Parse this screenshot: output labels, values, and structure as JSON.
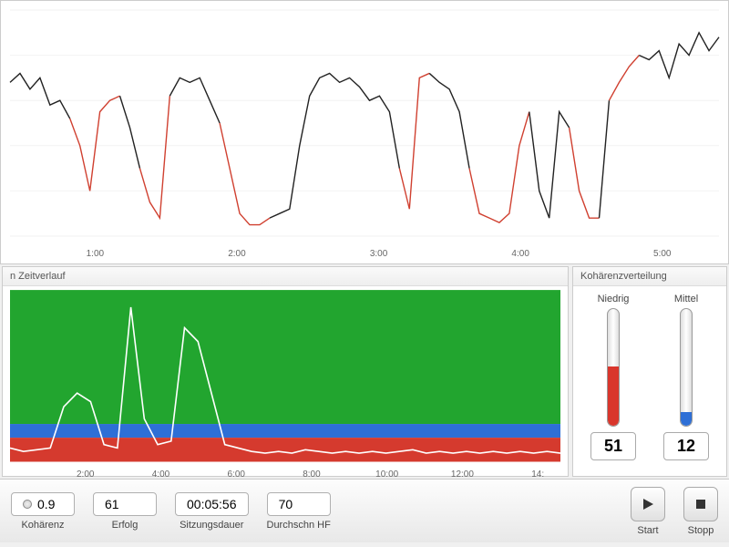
{
  "top_chart": {
    "type": "line",
    "background_color": "#ffffff",
    "grid_color": "#f2f2f2",
    "line_color_black": "#222222",
    "line_color_red": "#d04030",
    "xticks": [
      "1:00",
      "2:00",
      "3:00",
      "4:00",
      "5:00"
    ],
    "xlim": [
      0,
      330
    ],
    "ylim": [
      0,
      100
    ],
    "series_y": [
      68,
      72,
      65,
      70,
      58,
      60,
      52,
      40,
      20,
      55,
      60,
      62,
      48,
      30,
      15,
      8,
      62,
      70,
      68,
      70,
      60,
      50,
      30,
      10,
      5,
      5,
      8,
      10,
      12,
      40,
      62,
      70,
      72,
      68,
      70,
      66,
      60,
      62,
      55,
      30,
      12,
      70,
      72,
      68,
      65,
      55,
      30,
      10,
      8,
      6,
      10,
      40,
      55,
      20,
      8,
      55,
      48,
      20,
      8,
      8,
      60,
      68,
      75,
      80,
      78,
      82,
      70,
      85,
      80,
      90,
      82,
      88
    ],
    "red_segments": [
      [
        7,
        11
      ],
      [
        14,
        16
      ],
      [
        22,
        26
      ],
      [
        40,
        42
      ],
      [
        47,
        52
      ],
      [
        57,
        59
      ],
      [
        61,
        63
      ]
    ]
  },
  "zeitverlauf": {
    "title": "n Zeitverlauf",
    "type": "area+line",
    "bands": [
      {
        "color": "#22a52f",
        "from": 22,
        "to": 100
      },
      {
        "color": "#2e6fd6",
        "from": 14,
        "to": 22
      },
      {
        "color": "#d53a2e",
        "from": 0,
        "to": 14
      }
    ],
    "line_color": "#ffffff",
    "xticks": [
      "2:00",
      "4:00",
      "6:00",
      "8:00",
      "10:00",
      "12:00",
      "14:"
    ],
    "xlim": [
      0,
      840
    ],
    "ylim": [
      0,
      100
    ],
    "series_y": [
      8,
      6,
      7,
      8,
      32,
      40,
      35,
      10,
      8,
      90,
      25,
      10,
      12,
      78,
      70,
      40,
      10,
      8,
      6,
      5,
      6,
      5,
      7,
      6,
      5,
      6,
      5,
      6,
      5,
      6,
      7,
      5,
      6,
      5,
      6,
      5,
      6,
      5,
      6,
      5,
      6,
      5
    ]
  },
  "koh_dist": {
    "title": "Kohärenzverteilung",
    "thermometers": [
      {
        "label": "Niedrig",
        "value": "51",
        "fill_pct": 51,
        "fill_color": "#d9362c"
      },
      {
        "label": "Mittel",
        "value": "12",
        "fill_pct": 12,
        "fill_color": "#2e6fd6"
      }
    ]
  },
  "metrics": {
    "kohaerenz": {
      "value": "0.9",
      "label": "Kohärenz",
      "has_radio": true
    },
    "erfolg": {
      "value": "61",
      "label": "Erfolg"
    },
    "sitzungsdauer": {
      "value": "00:05:56",
      "label": "Sitzungsdauer"
    },
    "durchschn_hf": {
      "value": "70",
      "label": "Durchschn HF"
    }
  },
  "controls": {
    "start": "Start",
    "stopp": "Stopp"
  }
}
